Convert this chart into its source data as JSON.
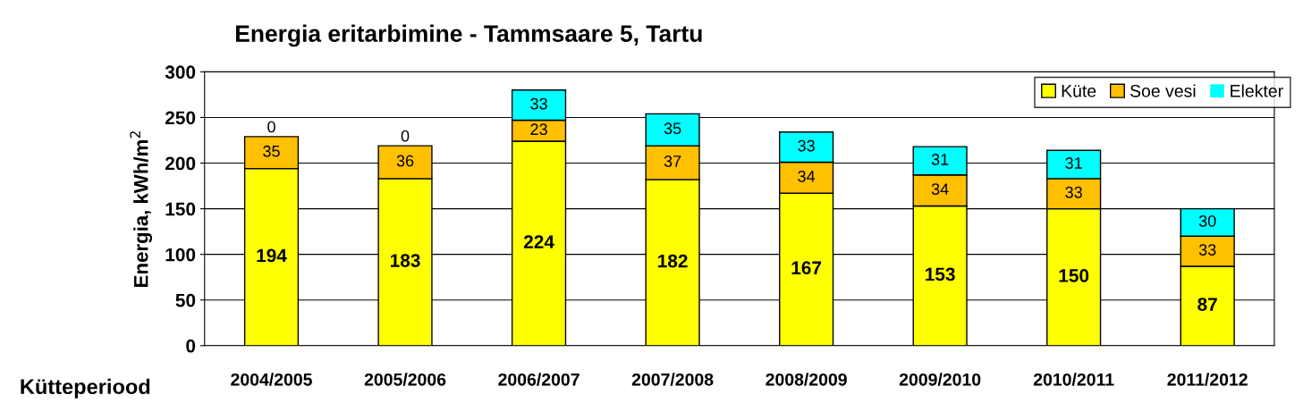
{
  "chart_data": {
    "type": "bar",
    "title": "Energia eritarbimine - Tammsaare 5, Tartu",
    "xlabel": "Kütteperiood",
    "ylabel": "Energia, kWh/m$^{2}$",
    "categories": [
      "2004/2005",
      "2005/2006",
      "2006/2007",
      "2007/2008",
      "2008/2009",
      "2009/2010",
      "2010/2011",
      "2011/2012"
    ],
    "stacked": true,
    "series": [
      {
        "name": "Küte",
        "color": "#ffff00",
        "values": [
          194,
          183,
          224,
          182,
          167,
          153,
          150,
          87
        ]
      },
      {
        "name": "Soe vesi",
        "color": "#ffc000",
        "values": [
          35,
          36,
          23,
          37,
          34,
          34,
          33,
          33
        ]
      },
      {
        "name": "Elekter",
        "color": "#00ffff",
        "values": [
          0,
          0,
          33,
          35,
          33,
          31,
          31,
          30
        ]
      }
    ],
    "ylim": [
      0,
      300
    ],
    "yticks": [
      0,
      50,
      100,
      150,
      200,
      250,
      300
    ],
    "grid": "y",
    "legend": "top right",
    "data_labels": true
  }
}
